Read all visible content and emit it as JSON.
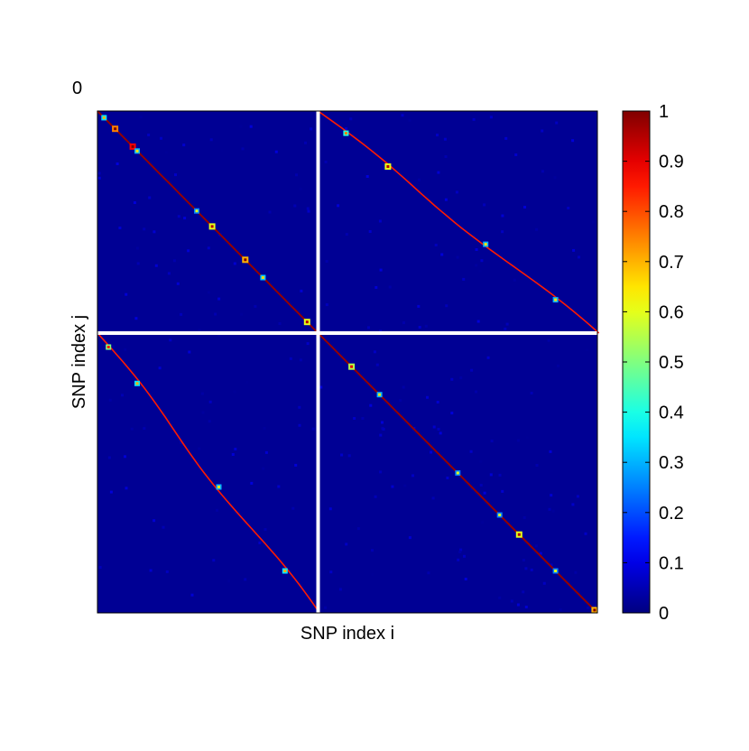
{
  "chart_data": {
    "type": "heatmap",
    "title": "",
    "corner_label": "0",
    "xlabel": "SNP index i",
    "ylabel": "SNP index j",
    "x_ticks_shown": false,
    "y_ticks_shown": false,
    "grid": false,
    "value_range": [
      0,
      1
    ],
    "colormap": "jet",
    "background_value": 0.02,
    "block_separators": "white cross dividing the matrix into four equal blocks",
    "block_diagonal_value": 0.98,
    "colorbar": {
      "position": "right",
      "ticks": [
        "0",
        "0.1",
        "0.2",
        "0.3",
        "0.4",
        "0.5",
        "0.6",
        "0.7",
        "0.8",
        "0.9",
        "1"
      ],
      "tick_values": [
        0,
        0.1,
        0.2,
        0.3,
        0.4,
        0.5,
        0.6,
        0.7,
        0.8,
        0.9,
        1
      ]
    },
    "highlight_clusters": [
      {
        "block": "top-left",
        "t": 0.03,
        "value": 0.35
      },
      {
        "block": "top-left",
        "t": 0.08,
        "value": 0.75
      },
      {
        "block": "top-left",
        "t": 0.16,
        "value": 0.88
      },
      {
        "block": "top-left",
        "t": 0.18,
        "value": 0.3
      },
      {
        "block": "top-left",
        "t": 0.45,
        "value": 0.25
      },
      {
        "block": "top-left",
        "t": 0.52,
        "value": 0.6
      },
      {
        "block": "top-left",
        "t": 0.67,
        "value": 0.7
      },
      {
        "block": "top-left",
        "t": 0.75,
        "value": 0.32
      },
      {
        "block": "top-left",
        "t": 0.95,
        "value": 0.6
      },
      {
        "block": "bottom-right",
        "t": 0.12,
        "value": 0.55
      },
      {
        "block": "bottom-right",
        "t": 0.22,
        "value": 0.3
      },
      {
        "block": "bottom-right",
        "t": 0.5,
        "value": 0.25
      },
      {
        "block": "bottom-right",
        "t": 0.65,
        "value": 0.25
      },
      {
        "block": "bottom-right",
        "t": 0.72,
        "value": 0.6
      },
      {
        "block": "bottom-right",
        "t": 0.85,
        "value": 0.25
      },
      {
        "block": "bottom-right",
        "t": 0.99,
        "value": 0.7
      },
      {
        "block": "top-right",
        "t": 0.1,
        "value": 0.4
      },
      {
        "block": "top-right",
        "t": 0.25,
        "value": 0.6
      },
      {
        "block": "top-right",
        "t": 0.6,
        "value": 0.3
      },
      {
        "block": "top-right",
        "t": 0.85,
        "value": 0.3
      },
      {
        "block": "bottom-left",
        "t": 0.05,
        "value": 0.5
      },
      {
        "block": "bottom-left",
        "t": 0.18,
        "value": 0.35
      },
      {
        "block": "bottom-left",
        "t": 0.55,
        "value": 0.3
      },
      {
        "block": "bottom-left",
        "t": 0.85,
        "value": 0.35
      }
    ]
  }
}
